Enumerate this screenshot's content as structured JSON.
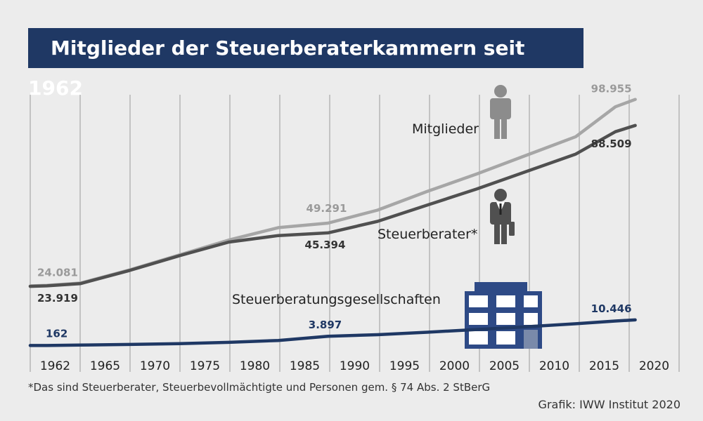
{
  "header": {
    "title": "Mitglieder der Steuerberaterkammern seit 1962"
  },
  "chart_data": {
    "type": "line",
    "title": "Mitglieder der Steuerberaterkammern seit 1962",
    "categories": [
      "1962",
      "1965",
      "1970",
      "1975",
      "1980",
      "1985",
      "1990",
      "1995",
      "2000",
      "2005",
      "2010",
      "2015",
      "2020"
    ],
    "x": [
      1962,
      1963,
      1965,
      1970,
      1975,
      1980,
      1985,
      1990,
      1995,
      2000,
      2005,
      2010,
      2015,
      2019,
      2021
    ],
    "series": [
      {
        "name": "Mitglieder",
        "color": "#a6a6a6",
        "values": [
          24081,
          24300,
          25200,
          30500,
          36500,
          42500,
          47500,
          49291,
          54500,
          62000,
          69000,
          76500,
          84000,
          96000,
          98955
        ]
      },
      {
        "name": "Steuerberater*",
        "color": "#505050",
        "values": [
          23919,
          24100,
          25000,
          30300,
          36200,
          41700,
          44300,
          45394,
          50000,
          56500,
          63000,
          70000,
          77000,
          86000,
          88509
        ]
      },
      {
        "name": "Steuerberatungsgesellschaften",
        "color": "#1f3864",
        "values": [
          162,
          180,
          350,
          600,
          900,
          1450,
          2200,
          3897,
          4500,
          5500,
          6600,
          7700,
          8900,
          10000,
          10446
        ]
      }
    ],
    "data_labels": [
      {
        "series": "Mitglieder",
        "x": 1962,
        "text": "24.081"
      },
      {
        "series": "Steuerberater*",
        "x": 1962,
        "text": "23.919"
      },
      {
        "series": "Steuerberatungsgesellschaften",
        "x": 1962,
        "text": "162"
      },
      {
        "series": "Mitglieder",
        "x": 1990,
        "text": "49.291"
      },
      {
        "series": "Steuerberater*",
        "x": 1990,
        "text": "45.394"
      },
      {
        "series": "Steuerberatungsgesellschaften",
        "x": 1990,
        "text": "3.897"
      },
      {
        "series": "Mitglieder",
        "x": 2021,
        "text": "98.955"
      },
      {
        "series": "Steuerberater*",
        "x": 2021,
        "text": "88.509"
      },
      {
        "series": "Steuerberatungsgesellschaften",
        "x": 2021,
        "text": "10.446"
      }
    ],
    "ylim": [
      0,
      110000
    ],
    "xlabel": "",
    "ylabel": "",
    "grid": "vertical",
    "legend": "inline labels with icons"
  },
  "icons": {
    "members": "person-icon",
    "advisor": "businessman-icon",
    "companies": "office-building-icon"
  },
  "footnote": "*Das sind Steuerberater, Steuerbevollmächtigte und Personen gem. § 74 Abs. 2 StBerG",
  "credit": "Grafik: IWW Institut 2020"
}
